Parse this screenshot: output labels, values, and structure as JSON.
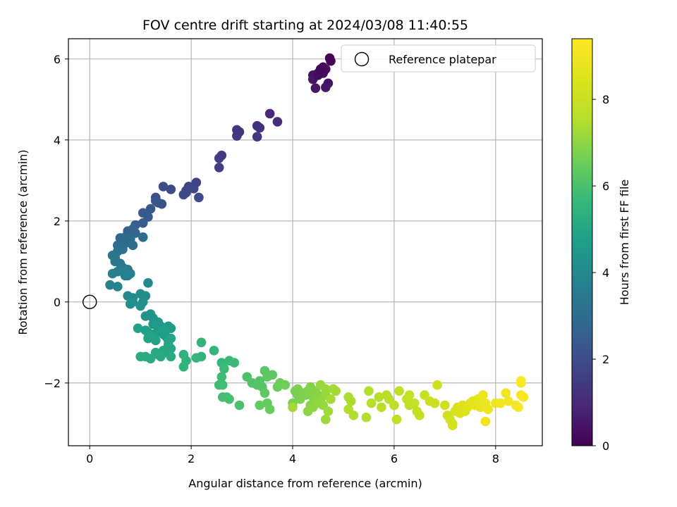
{
  "chart_data": {
    "type": "scatter",
    "title": "FOV centre drift starting at 2024/03/08 11:40:55",
    "xlabel": "Angular distance from reference (arcmin)",
    "ylabel": "Rotation from reference (arcmin)",
    "xlim": [
      -0.42,
      8.92
    ],
    "ylim": [
      -3.55,
      6.5
    ],
    "x_ticks": [
      0,
      2,
      4,
      6,
      8
    ],
    "y_ticks": [
      -2,
      0,
      2,
      4,
      6
    ],
    "x_tick_labels": [
      "0",
      "2",
      "4",
      "6",
      "8"
    ],
    "y_tick_labels": [
      "−2",
      "0",
      "2",
      "4",
      "6"
    ],
    "grid": true,
    "legend": {
      "placement": "top-right",
      "entries": [
        "Reference platepar"
      ]
    },
    "reference_point": {
      "label": "Reference platepar",
      "x": 0,
      "y": 0
    },
    "colorbar": {
      "label": "Hours from first FF file",
      "colormap": "viridis",
      "range": [
        0,
        9.4
      ],
      "ticks": [
        0,
        2,
        4,
        6,
        8
      ],
      "tick_labels": [
        "0",
        "2",
        "4",
        "6",
        "8"
      ]
    },
    "points": [
      [
        4.6,
        5.8,
        0.2
      ],
      [
        4.75,
        5.95,
        0.1
      ],
      [
        4.65,
        5.75,
        0.3
      ],
      [
        4.4,
        5.6,
        0.4
      ],
      [
        4.5,
        5.65,
        0.35
      ],
      [
        4.55,
        5.7,
        0.3
      ],
      [
        4.4,
        5.5,
        0.5
      ],
      [
        4.7,
        5.4,
        0.45
      ],
      [
        4.65,
        5.3,
        0.5
      ],
      [
        4.45,
        5.28,
        0.5
      ],
      [
        4.5,
        5.6,
        0.3
      ],
      [
        4.6,
        5.65,
        0.25
      ],
      [
        4.73,
        6.02,
        0.1
      ],
      [
        4.55,
        5.75,
        0.2
      ],
      [
        3.55,
        4.65,
        1.0
      ],
      [
        3.7,
        4.45,
        1.1
      ],
      [
        3.3,
        4.35,
        1.15
      ],
      [
        3.35,
        4.3,
        1.2
      ],
      [
        2.9,
        4.25,
        1.25
      ],
      [
        2.95,
        4.2,
        1.3
      ],
      [
        2.9,
        4.1,
        1.35
      ],
      [
        3.3,
        4.08,
        1.35
      ],
      [
        2.6,
        3.62,
        1.5
      ],
      [
        2.55,
        3.55,
        1.55
      ],
      [
        2.55,
        3.32,
        1.6
      ],
      [
        2.1,
        2.95,
        1.7
      ],
      [
        1.95,
        2.85,
        1.75
      ],
      [
        2.05,
        2.8,
        1.8
      ],
      [
        1.9,
        2.7,
        1.85
      ],
      [
        2.15,
        2.58,
        1.9
      ],
      [
        1.9,
        2.75,
        1.8
      ],
      [
        1.85,
        2.65,
        1.85
      ],
      [
        1.6,
        2.78,
        1.95
      ],
      [
        1.45,
        2.85,
        2.0
      ],
      [
        1.3,
        2.58,
        2.1
      ],
      [
        1.35,
        2.45,
        2.15
      ],
      [
        1.42,
        2.42,
        2.15
      ],
      [
        1.3,
        2.5,
        2.2
      ],
      [
        1.2,
        2.3,
        2.3
      ],
      [
        1.05,
        2.2,
        2.35
      ],
      [
        1.15,
        2.1,
        2.4
      ],
      [
        1.05,
        1.95,
        2.5
      ],
      [
        0.9,
        1.9,
        2.55
      ],
      [
        0.85,
        1.8,
        2.65
      ],
      [
        0.75,
        1.75,
        2.7
      ],
      [
        0.9,
        1.7,
        2.75
      ],
      [
        0.7,
        1.6,
        2.8
      ],
      [
        0.6,
        1.58,
        2.85
      ],
      [
        0.65,
        1.5,
        2.9
      ],
      [
        0.8,
        1.55,
        2.9
      ],
      [
        1.05,
        1.6,
        2.95
      ],
      [
        0.55,
        1.4,
        3.0
      ],
      [
        0.6,
        1.35,
        3.05
      ],
      [
        0.7,
        1.45,
        3.0
      ],
      [
        0.65,
        1.3,
        3.1
      ],
      [
        0.85,
        1.4,
        3.05
      ],
      [
        0.55,
        1.25,
        3.15
      ],
      [
        0.45,
        1.15,
        3.25
      ],
      [
        0.5,
        1.1,
        3.3
      ],
      [
        0.5,
        1.0,
        3.35
      ],
      [
        0.6,
        0.95,
        3.4
      ],
      [
        0.65,
        0.85,
        3.45
      ],
      [
        0.55,
        0.75,
        3.5
      ],
      [
        0.75,
        0.8,
        3.55
      ],
      [
        0.8,
        0.7,
        3.6
      ],
      [
        0.65,
        0.75,
        3.6
      ],
      [
        0.7,
        0.65,
        3.65
      ],
      [
        0.45,
        0.7,
        3.65
      ],
      [
        0.75,
        0.65,
        3.7
      ],
      [
        0.4,
        0.42,
        3.8
      ],
      [
        0.55,
        0.38,
        3.85
      ],
      [
        1.15,
        0.47,
        3.9
      ],
      [
        0.75,
        0.15,
        4.0
      ],
      [
        0.85,
        0.1,
        4.05
      ],
      [
        1.0,
        0.2,
        4.05
      ],
      [
        1.1,
        0.15,
        4.1
      ],
      [
        1.05,
        0.0,
        4.15
      ],
      [
        0.8,
        -0.05,
        4.2
      ],
      [
        0.85,
        0.0,
        4.2
      ],
      [
        1.0,
        -0.1,
        4.25
      ],
      [
        1.1,
        -0.35,
        4.3
      ],
      [
        1.2,
        -0.3,
        4.35
      ],
      [
        1.25,
        -0.4,
        4.4
      ],
      [
        1.35,
        -0.5,
        4.45
      ],
      [
        1.25,
        -0.55,
        4.5
      ],
      [
        1.4,
        -0.6,
        4.5
      ],
      [
        1.45,
        -0.65,
        4.55
      ],
      [
        1.5,
        -0.7,
        4.55
      ],
      [
        1.35,
        -0.7,
        4.6
      ],
      [
        1.55,
        -0.6,
        4.6
      ],
      [
        1.6,
        -0.65,
        4.65
      ],
      [
        1.4,
        -0.75,
        4.65
      ],
      [
        1.45,
        -0.8,
        4.7
      ],
      [
        1.5,
        -0.85,
        4.7
      ],
      [
        1.25,
        -0.8,
        4.75
      ],
      [
        1.15,
        -0.75,
        4.75
      ],
      [
        1.1,
        -0.7,
        4.8
      ],
      [
        0.95,
        -0.65,
        4.8
      ],
      [
        1.3,
        -0.95,
        4.85
      ],
      [
        1.15,
        -0.9,
        4.85
      ],
      [
        1.2,
        -0.85,
        4.9
      ],
      [
        1.55,
        -0.95,
        4.9
      ],
      [
        1.6,
        -0.9,
        4.95
      ],
      [
        1.55,
        -1.05,
        4.95
      ],
      [
        1.6,
        -1.15,
        5.0
      ],
      [
        1.5,
        -1.25,
        5.05
      ],
      [
        1.45,
        -1.2,
        5.05
      ],
      [
        1.3,
        -1.25,
        5.1
      ],
      [
        1.35,
        -1.3,
        5.1
      ],
      [
        1.4,
        -1.35,
        5.15
      ],
      [
        1.6,
        -1.35,
        5.15
      ],
      [
        1.2,
        -1.4,
        5.2
      ],
      [
        1.1,
        -1.35,
        5.2
      ],
      [
        1.0,
        -1.35,
        5.25
      ],
      [
        1.85,
        -1.3,
        5.4
      ],
      [
        1.9,
        -1.45,
        5.45
      ],
      [
        1.85,
        -1.6,
        5.5
      ],
      [
        2.2,
        -1.35,
        5.5
      ],
      [
        2.1,
        -1.38,
        5.55
      ],
      [
        2.2,
        -1.0,
        5.55
      ],
      [
        2.45,
        -1.2,
        5.6
      ],
      [
        2.6,
        -1.5,
        5.65
      ],
      [
        2.75,
        -1.45,
        5.7
      ],
      [
        2.85,
        -1.5,
        5.75
      ],
      [
        2.65,
        -1.65,
        5.75
      ],
      [
        2.6,
        -1.85,
        5.8
      ],
      [
        2.55,
        -2.05,
        5.85
      ],
      [
        2.62,
        -2.05,
        5.85
      ],
      [
        2.7,
        -2.35,
        5.9
      ],
      [
        2.62,
        -2.35,
        5.9
      ],
      [
        2.75,
        -2.4,
        5.95
      ],
      [
        2.95,
        -2.55,
        6.0
      ],
      [
        3.1,
        -1.85,
        6.05
      ],
      [
        3.2,
        -2.0,
        6.1
      ],
      [
        3.3,
        -2.05,
        6.15
      ],
      [
        3.35,
        -1.95,
        6.2
      ],
      [
        3.4,
        -2.1,
        6.2
      ],
      [
        3.45,
        -1.7,
        6.25
      ],
      [
        3.5,
        -1.85,
        6.3
      ],
      [
        3.6,
        -1.8,
        6.3
      ],
      [
        3.45,
        -2.25,
        6.35
      ],
      [
        3.5,
        -2.5,
        6.4
      ],
      [
        3.35,
        -2.55,
        6.4
      ],
      [
        3.55,
        -2.65,
        6.45
      ],
      [
        3.7,
        -2.1,
        6.5
      ],
      [
        3.75,
        -2.0,
        6.55
      ],
      [
        3.85,
        -2.05,
        6.6
      ],
      [
        4.05,
        -2.2,
        6.65
      ],
      [
        4.1,
        -2.3,
        6.7
      ],
      [
        4.0,
        -2.5,
        6.7
      ],
      [
        4.1,
        -2.15,
        6.75
      ],
      [
        4.15,
        -2.4,
        6.75
      ],
      [
        4.2,
        -2.25,
        6.8
      ],
      [
        4.25,
        -2.3,
        6.8
      ],
      [
        4.3,
        -2.2,
        6.85
      ],
      [
        4.35,
        -2.1,
        6.85
      ],
      [
        4.4,
        -2.35,
        6.9
      ],
      [
        4.45,
        -2.2,
        6.9
      ],
      [
        4.5,
        -2.3,
        6.95
      ],
      [
        4.35,
        -2.55,
        6.95
      ],
      [
        4.3,
        -2.7,
        7.0
      ],
      [
        4.4,
        -2.6,
        7.0
      ],
      [
        4.5,
        -2.5,
        7.05
      ],
      [
        4.55,
        -2.45,
        7.05
      ],
      [
        4.6,
        -2.55,
        7.1
      ],
      [
        4.65,
        -2.3,
        7.1
      ],
      [
        4.55,
        -2.05,
        7.15
      ],
      [
        4.65,
        -2.15,
        7.15
      ],
      [
        4.7,
        -2.7,
        7.2
      ],
      [
        4.65,
        -2.9,
        7.2
      ],
      [
        4.0,
        -2.6,
        7.25
      ],
      [
        4.8,
        -2.15,
        7.25
      ],
      [
        4.85,
        -2.2,
        7.3
      ],
      [
        4.75,
        -2.4,
        7.3
      ],
      [
        5.1,
        -2.35,
        7.4
      ],
      [
        5.15,
        -2.45,
        7.4
      ],
      [
        5.1,
        -2.65,
        7.45
      ],
      [
        5.2,
        -2.8,
        7.45
      ],
      [
        5.5,
        -2.2,
        7.5
      ],
      [
        5.45,
        -2.85,
        7.5
      ],
      [
        5.55,
        -2.5,
        7.55
      ],
      [
        5.7,
        -2.35,
        7.6
      ],
      [
        5.75,
        -2.6,
        7.6
      ],
      [
        5.85,
        -2.3,
        7.65
      ],
      [
        5.9,
        -2.4,
        7.65
      ],
      [
        6.0,
        -2.55,
        7.7
      ],
      [
        6.05,
        -2.9,
        7.75
      ],
      [
        6.1,
        -2.2,
        7.75
      ],
      [
        6.25,
        -2.4,
        7.8
      ],
      [
        6.3,
        -2.55,
        7.8
      ],
      [
        6.3,
        -2.3,
        7.85
      ],
      [
        6.4,
        -2.5,
        7.85
      ],
      [
        6.45,
        -2.7,
        7.9
      ],
      [
        6.5,
        -2.8,
        7.9
      ],
      [
        6.6,
        -2.3,
        7.95
      ],
      [
        6.7,
        -2.45,
        8.0
      ],
      [
        6.8,
        -2.5,
        8.0
      ],
      [
        6.85,
        -2.05,
        8.05
      ],
      [
        7.0,
        -2.55,
        8.1
      ],
      [
        7.05,
        -2.8,
        8.15
      ],
      [
        7.1,
        -2.9,
        8.2
      ],
      [
        7.15,
        -3.0,
        8.2
      ],
      [
        7.15,
        -3.05,
        8.25
      ],
      [
        7.2,
        -2.7,
        8.3
      ],
      [
        7.25,
        -2.6,
        8.35
      ],
      [
        7.3,
        -2.75,
        8.4
      ],
      [
        7.35,
        -2.55,
        8.45
      ],
      [
        7.4,
        -2.7,
        8.5
      ],
      [
        7.45,
        -2.6,
        8.55
      ],
      [
        7.5,
        -2.5,
        8.6
      ],
      [
        7.55,
        -2.45,
        8.65
      ],
      [
        7.6,
        -2.55,
        8.7
      ],
      [
        7.65,
        -2.4,
        8.75
      ],
      [
        7.7,
        -2.6,
        8.8
      ],
      [
        7.75,
        -2.3,
        8.85
      ],
      [
        7.8,
        -2.5,
        8.9
      ],
      [
        7.85,
        -2.65,
        8.95
      ],
      [
        7.8,
        -2.95,
        8.95
      ],
      [
        8.0,
        -2.5,
        9.0
      ],
      [
        8.1,
        -2.5,
        9.05
      ],
      [
        8.2,
        -2.25,
        9.1
      ],
      [
        8.25,
        -2.45,
        9.1
      ],
      [
        8.4,
        -2.55,
        9.15
      ],
      [
        8.5,
        -2.3,
        9.2
      ],
      [
        8.55,
        -2.35,
        9.25
      ],
      [
        8.5,
        -1.95,
        9.3
      ],
      [
        8.45,
        -2.6,
        9.3
      ],
      [
        8.5,
        -2.0,
        9.35
      ]
    ]
  }
}
